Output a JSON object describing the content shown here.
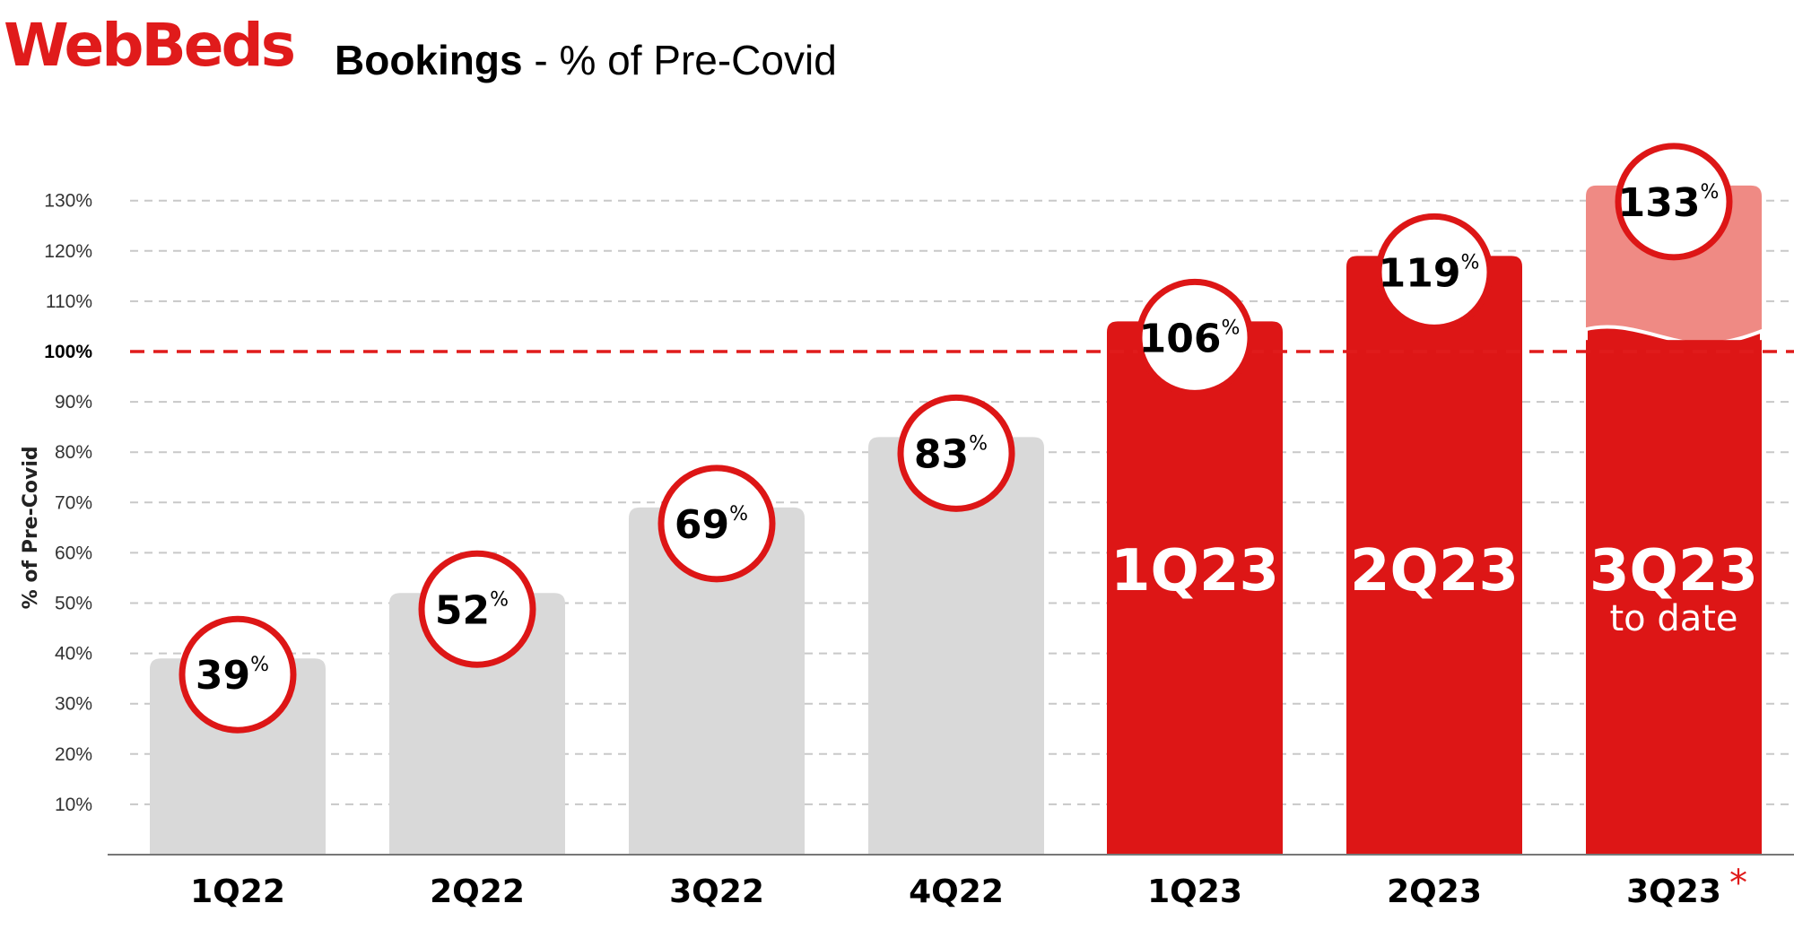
{
  "brand": {
    "logo_text": "WebBeds",
    "color": "#e01b1b"
  },
  "header": {
    "title_bold": "Bookings",
    "title_rest": " - % of Pre-Covid"
  },
  "colors": {
    "past": "#d9d9d9",
    "current": "#dd1616",
    "projected": "#ef8a84",
    "reference": "#e01b1b"
  },
  "chart_data": {
    "type": "bar",
    "title": "Bookings - % of Pre-Covid",
    "ylabel": "% of Pre-Covid",
    "xlabel": "",
    "ylim": [
      0,
      135
    ],
    "y_ticks": [
      "10%",
      "20%",
      "30%",
      "40%",
      "50%",
      "60%",
      "70%",
      "80%",
      "90%",
      "100%",
      "110%",
      "120%",
      "130%"
    ],
    "reference_line": {
      "value": 100,
      "label": "100%",
      "style": "dashed"
    },
    "grid": true,
    "categories": [
      "1Q22",
      "2Q22",
      "3Q22",
      "4Q22",
      "1Q23",
      "2Q23",
      "3Q23"
    ],
    "values": [
      39,
      52,
      69,
      83,
      106,
      119,
      133
    ],
    "data_labels": [
      "39",
      "52",
      "69",
      "83",
      "106",
      "119",
      "133"
    ],
    "label_unit": "%",
    "bar_styles": [
      "past",
      "past",
      "past",
      "past",
      "current",
      "current",
      "projected"
    ],
    "in_bar_labels": [
      {
        "index": 4,
        "text": "1Q23",
        "sub": ""
      },
      {
        "index": 5,
        "text": "2Q23",
        "sub": ""
      },
      {
        "index": 6,
        "text": "3Q23",
        "sub": "to date",
        "to_date_value": 103
      }
    ],
    "footnote_marker": {
      "index": 6,
      "text": "*"
    }
  }
}
